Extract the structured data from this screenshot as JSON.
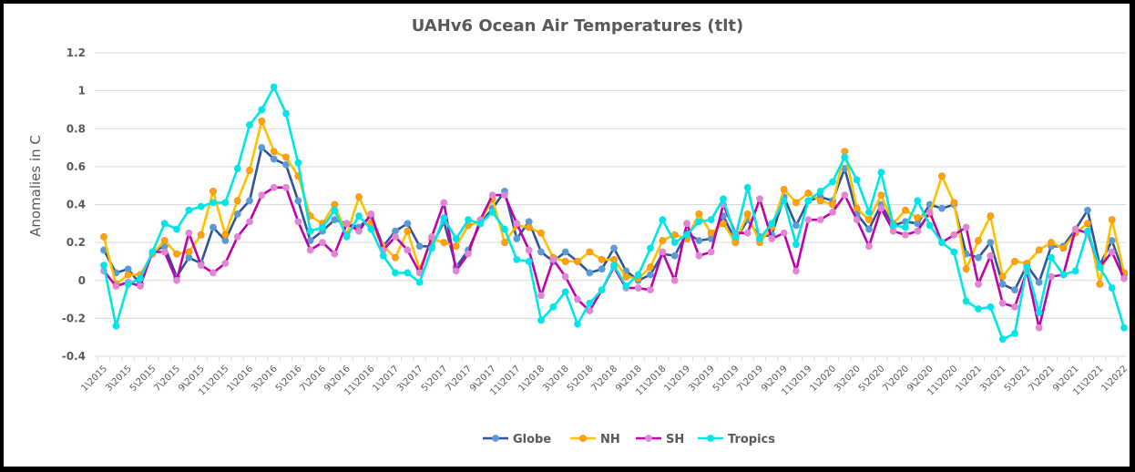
{
  "chart_data": {
    "type": "line",
    "title": "UAHv6 Ocean Air Temperatures (tlt)",
    "xlabel": "",
    "ylabel": "Anomalies in C",
    "ylim": [
      -0.4,
      1.2
    ],
    "yticks": [
      -0.4,
      -0.2,
      0,
      0.2,
      0.4,
      0.6,
      0.8,
      1,
      1.2
    ],
    "ytick_labels": [
      "-0.4",
      "-0.2",
      "0",
      "0.2",
      "0.4",
      "0.6",
      "0.8",
      "1",
      "1.2"
    ],
    "grid": true,
    "legend_position": "bottom",
    "x_tick_every": 2,
    "x": [
      "1\\2015",
      "2\\2015",
      "3\\2015",
      "4\\2015",
      "5\\2015",
      "6\\2015",
      "7\\2015",
      "8\\2015",
      "9\\2015",
      "10\\2015",
      "11\\2015",
      "12\\2015",
      "1\\2016",
      "2\\2016",
      "3\\2016",
      "4\\2016",
      "5\\2016",
      "6\\2016",
      "7\\2016",
      "8\\2016",
      "9\\2016",
      "10\\2016",
      "11\\2016",
      "12\\2016",
      "1\\2017",
      "2\\2017",
      "3\\2017",
      "4\\2017",
      "5\\2017",
      "6\\2017",
      "7\\2017",
      "8\\2017",
      "9\\2017",
      "10\\2017",
      "11\\2017",
      "12\\2017",
      "1\\2018",
      "2\\2018",
      "3\\2018",
      "4\\2018",
      "5\\2018",
      "6\\2018",
      "7\\2018",
      "8\\2018",
      "9\\2018",
      "10\\2018",
      "11\\2018",
      "12\\2018",
      "1\\2019",
      "2\\2019",
      "3\\2019",
      "4\\2019",
      "5\\2019",
      "6\\2019",
      "7\\2019",
      "8\\2019",
      "9\\2019",
      "10\\2019",
      "11\\2019",
      "12\\2019",
      "1\\2020",
      "2\\2020",
      "3\\2020",
      "4\\2020",
      "5\\2020",
      "6\\2020",
      "7\\2020",
      "8\\2020",
      "9\\2020",
      "10\\2020",
      "11\\2020",
      "12\\2020",
      "1\\2021",
      "2\\2021",
      "3\\2021",
      "4\\2021",
      "5\\2021",
      "6\\2021",
      "7\\2021",
      "8\\2021",
      "9\\2021",
      "10\\2021",
      "11\\2021",
      "12\\2021",
      "1\\2022"
    ],
    "series": [
      {
        "name": "Globe",
        "line_color": "#2f5597",
        "marker_color": "#5b9bd5",
        "values": [
          0.16,
          0.04,
          0.06,
          -0.02,
          0.15,
          0.18,
          0.02,
          0.12,
          0.09,
          0.28,
          0.21,
          0.35,
          0.42,
          0.7,
          0.64,
          0.61,
          0.42,
          0.21,
          0.26,
          0.32,
          0.3,
          0.28,
          0.34,
          0.18,
          0.26,
          0.3,
          0.18,
          0.18,
          0.31,
          0.07,
          0.16,
          0.3,
          0.38,
          0.47,
          0.22,
          0.31,
          0.15,
          0.1,
          0.15,
          0.1,
          0.04,
          0.06,
          0.17,
          0.05,
          0.0,
          0.03,
          0.14,
          0.13,
          0.25,
          0.21,
          0.22,
          0.34,
          0.21,
          0.32,
          0.23,
          0.24,
          0.44,
          0.29,
          0.42,
          0.44,
          0.42,
          0.59,
          0.35,
          0.27,
          0.4,
          0.29,
          0.31,
          0.3,
          0.4,
          0.38,
          0.4,
          0.14,
          0.12,
          0.2,
          -0.02,
          -0.05,
          0.08,
          -0.01,
          0.18,
          0.18,
          0.27,
          0.37,
          0.08,
          0.21,
          0.03
        ]
      },
      {
        "name": "NH",
        "line_color": "#ffc000",
        "marker_color": "#ffa500",
        "values": [
          0.23,
          -0.02,
          0.03,
          0.03,
          0.14,
          0.21,
          0.14,
          0.15,
          0.24,
          0.47,
          0.24,
          0.42,
          0.58,
          0.84,
          0.68,
          0.65,
          0.55,
          0.34,
          0.3,
          0.4,
          0.24,
          0.44,
          0.3,
          0.18,
          0.12,
          0.26,
          0.06,
          0.22,
          0.2,
          0.18,
          0.29,
          0.31,
          0.43,
          0.2,
          0.29,
          0.28,
          0.25,
          0.12,
          0.1,
          0.1,
          0.15,
          0.11,
          0.11,
          0.02,
          0.01,
          0.07,
          0.21,
          0.24,
          0.22,
          0.35,
          0.25,
          0.3,
          0.2,
          0.35,
          0.2,
          0.28,
          0.48,
          0.41,
          0.46,
          0.42,
          0.4,
          0.68,
          0.38,
          0.32,
          0.45,
          0.3,
          0.37,
          0.33,
          0.35,
          0.55,
          0.41,
          0.06,
          0.21,
          0.34,
          0.02,
          0.1,
          0.09,
          0.16,
          0.2,
          0.17,
          0.25,
          0.3,
          -0.02,
          0.32,
          0.04
        ]
      },
      {
        "name": "SH",
        "line_color": "#c000a8",
        "marker_color": "#e086d3",
        "values": [
          0.05,
          -0.03,
          -0.01,
          -0.03,
          0.15,
          0.15,
          0.0,
          0.25,
          0.08,
          0.04,
          0.09,
          0.23,
          0.31,
          0.45,
          0.49,
          0.49,
          0.31,
          0.16,
          0.2,
          0.14,
          0.3,
          0.26,
          0.35,
          0.16,
          0.23,
          0.16,
          0.04,
          0.23,
          0.41,
          0.05,
          0.14,
          0.32,
          0.45,
          0.45,
          0.3,
          0.16,
          -0.08,
          0.11,
          0.02,
          -0.1,
          -0.16,
          -0.05,
          0.07,
          -0.04,
          -0.04,
          -0.05,
          0.15,
          0.0,
          0.3,
          0.13,
          0.15,
          0.4,
          0.25,
          0.25,
          0.43,
          0.22,
          0.25,
          0.05,
          0.32,
          0.32,
          0.36,
          0.45,
          0.32,
          0.18,
          0.38,
          0.26,
          0.24,
          0.26,
          0.36,
          0.2,
          0.24,
          0.28,
          -0.02,
          0.13,
          -0.12,
          -0.14,
          0.05,
          -0.25,
          0.02,
          0.03,
          0.27,
          0.25,
          0.07,
          0.15,
          0.01
        ]
      },
      {
        "name": "Tropics",
        "line_color": "#00e5e5",
        "marker_color": "#00e5e5",
        "values": [
          0.08,
          -0.24,
          -0.02,
          0.01,
          0.15,
          0.3,
          0.27,
          0.37,
          0.39,
          0.41,
          0.41,
          0.59,
          0.82,
          0.9,
          1.02,
          0.88,
          0.62,
          0.26,
          0.28,
          0.37,
          0.23,
          0.34,
          0.27,
          0.13,
          0.04,
          0.04,
          -0.01,
          0.17,
          0.33,
          0.22,
          0.32,
          0.3,
          0.36,
          0.27,
          0.11,
          0.1,
          -0.21,
          -0.14,
          -0.06,
          -0.23,
          -0.12,
          -0.05,
          0.08,
          -0.03,
          0.03,
          0.17,
          0.32,
          0.2,
          0.24,
          0.31,
          0.32,
          0.43,
          0.23,
          0.49,
          0.22,
          0.3,
          0.42,
          0.19,
          0.42,
          0.47,
          0.52,
          0.65,
          0.53,
          0.36,
          0.57,
          0.29,
          0.28,
          0.42,
          0.29,
          0.2,
          0.15,
          -0.11,
          -0.15,
          -0.14,
          -0.31,
          -0.28,
          0.07,
          -0.17,
          0.12,
          0.03,
          0.05,
          0.26,
          0.07,
          -0.04,
          -0.25
        ]
      }
    ]
  }
}
